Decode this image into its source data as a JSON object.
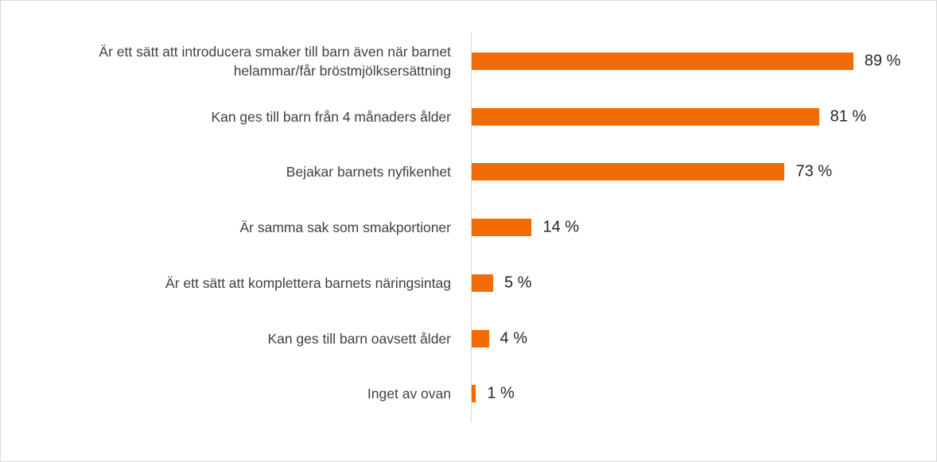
{
  "chart_data": {
    "type": "bar",
    "orientation": "horizontal",
    "categories": [
      "Är ett sätt att introducera smaker till barn även när barnet helammar/får bröstmjölksersättning",
      "Kan ges till barn från 4 månaders ålder",
      "Bejakar barnets nyfikenhet",
      "Är samma sak som smakportioner",
      "Är ett sätt att komplettera barnets näringsintag",
      "Kan ges till barn oavsett ålder",
      "Inget av ovan"
    ],
    "values": [
      89,
      81,
      73,
      14,
      5,
      4,
      1
    ],
    "value_labels": [
      "89 %",
      "81 %",
      "73 %",
      "14 %",
      "5 %",
      "4 %",
      "1 %"
    ],
    "color": "#f26c05"
  }
}
